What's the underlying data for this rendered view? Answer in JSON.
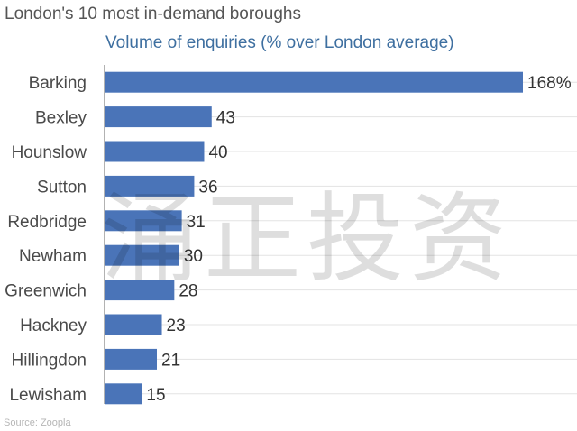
{
  "chart_data": {
    "type": "bar",
    "orientation": "horizontal",
    "title": "London's 10 most in-demand boroughs",
    "subtitle": "Volume of enquiries (% over London average)",
    "source": "Source: Zoopla",
    "categories": [
      "Barking",
      "Bexley",
      "Hounslow",
      "Sutton",
      "Redbridge",
      "Newham",
      "Greenwich",
      "Hackney",
      "Hillingdon",
      "Lewisham"
    ],
    "values": [
      168,
      43,
      40,
      36,
      31,
      30,
      28,
      23,
      21,
      15
    ],
    "value_labels": [
      "168%",
      "43",
      "40",
      "36",
      "31",
      "30",
      "28",
      "23",
      "21",
      "15"
    ],
    "xlim": [
      0,
      168
    ],
    "grid": true,
    "bar_color": "#4a74b8"
  },
  "watermark": "涌正投资"
}
